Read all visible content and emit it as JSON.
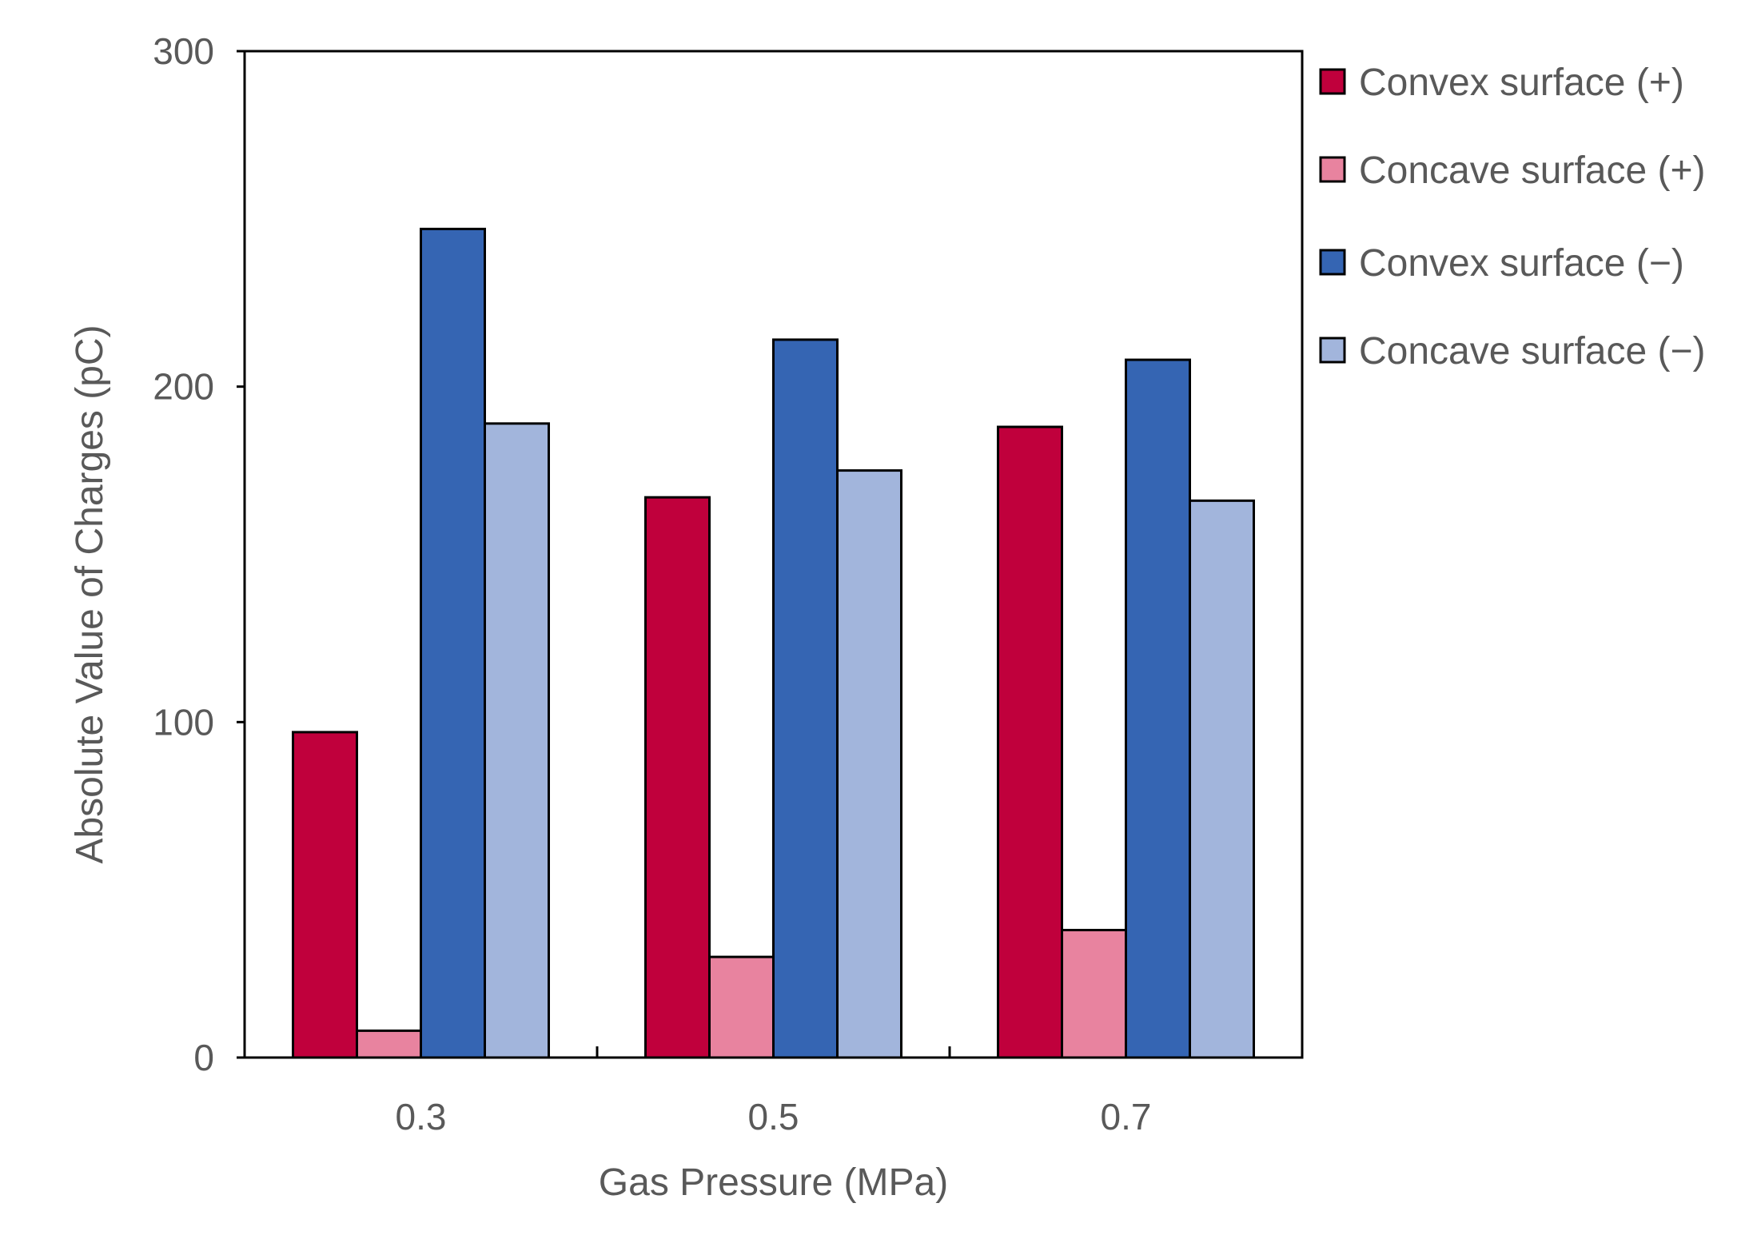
{
  "chart_data": {
    "type": "bar",
    "title": "",
    "xlabel": "Gas Pressure (MPa)",
    "ylabel": "Absolute Value of Charges (pC)",
    "categories": [
      "0.3",
      "0.5",
      "0.7"
    ],
    "ylim": [
      0,
      300
    ],
    "yticks": [
      "0",
      "100",
      "200",
      "300"
    ],
    "grid": false,
    "legend_position": "right",
    "series": [
      {
        "name": "Convex surface (+)",
        "color": "#c0003c",
        "values": [
          97,
          167,
          188
        ]
      },
      {
        "name": "Concave surface (+)",
        "color": "#e8839f",
        "values": [
          8,
          30,
          38
        ]
      },
      {
        "name": "Convex surface (−)",
        "color": "#3565b3",
        "values": [
          247,
          214,
          208
        ]
      },
      {
        "name": "Concave surface (−)",
        "color": "#a2b5dc",
        "values": [
          189,
          175,
          166
        ]
      }
    ]
  }
}
